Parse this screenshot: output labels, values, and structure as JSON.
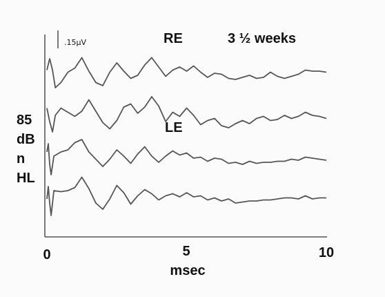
{
  "chart_data": {
    "type": "line",
    "title": "",
    "xlabel": "msec",
    "ylabel": "",
    "xlim": [
      0,
      10
    ],
    "x_ticks": [
      "0",
      "5",
      "10"
    ],
    "scale_bar_label": ".15µV",
    "annotations": {
      "right_ear": "RE",
      "left_ear": "LE",
      "age": "3 ½ weeks",
      "level": [
        "85",
        "dB",
        "n",
        "HL"
      ]
    },
    "series": [
      {
        "x": [
          0.0,
          0.1,
          0.2,
          0.3,
          0.5,
          0.75,
          1.0,
          1.25,
          1.5,
          1.75,
          2.0,
          2.25,
          2.5,
          2.75,
          3.0,
          3.25,
          3.5,
          3.75,
          4.0,
          4.25,
          4.5,
          4.75,
          5.0,
          5.25,
          5.5,
          5.75,
          6.0,
          6.25,
          6.5,
          6.75,
          7.0,
          7.25,
          7.5,
          7.75,
          8.0,
          8.25,
          8.5,
          8.75,
          9.0,
          9.25,
          9.5,
          9.75,
          10.0
        ],
        "y": [
          0.35,
          0.9,
          0.35,
          -0.5,
          -0.25,
          0.25,
          0.45,
          0.95,
          0.3,
          -0.25,
          -0.4,
          0.25,
          0.7,
          0.3,
          -0.05,
          0.1,
          0.6,
          0.95,
          0.5,
          0.05,
          0.35,
          0.5,
          0.3,
          0.55,
          0.25,
          0.0,
          0.2,
          0.15,
          -0.05,
          -0.1,
          0.0,
          0.1,
          -0.05,
          0.0,
          0.25,
          0.05,
          -0.05,
          0.05,
          0.15,
          0.35,
          0.3,
          0.3,
          0.25
        ]
      },
      {
        "x": [
          0.0,
          0.1,
          0.2,
          0.3,
          0.5,
          0.75,
          1.0,
          1.25,
          1.5,
          1.75,
          2.0,
          2.25,
          2.5,
          2.75,
          3.0,
          3.25,
          3.5,
          3.75,
          4.0,
          4.25,
          4.5,
          4.75,
          5.0,
          5.25,
          5.5,
          5.75,
          6.0,
          6.25,
          6.5,
          6.75,
          7.0,
          7.25,
          7.5,
          7.75,
          8.0,
          8.25,
          8.5,
          8.75,
          9.0,
          9.25,
          9.5,
          9.75,
          10.0
        ],
        "y": [
          0.45,
          -0.2,
          -0.7,
          0.1,
          0.45,
          0.25,
          0.05,
          0.3,
          0.85,
          0.3,
          -0.25,
          -0.55,
          -0.15,
          0.5,
          0.65,
          0.2,
          0.5,
          1.0,
          0.55,
          -0.2,
          0.25,
          0.05,
          0.45,
          0.1,
          -0.35,
          -0.15,
          -0.05,
          -0.4,
          -0.5,
          -0.3,
          -0.15,
          -0.3,
          -0.05,
          0.05,
          -0.15,
          -0.1,
          0.1,
          -0.05,
          0.05,
          0.25,
          0.1,
          0.05,
          -0.05
        ]
      },
      {
        "x": [
          0.0,
          0.05,
          0.1,
          0.15,
          0.25,
          0.5,
          0.75,
          1.0,
          1.25,
          1.5,
          1.75,
          2.0,
          2.25,
          2.5,
          2.75,
          3.0,
          3.25,
          3.5,
          3.75,
          4.0,
          4.25,
          4.5,
          4.75,
          5.0,
          5.25,
          5.5,
          5.75,
          6.0,
          6.25,
          6.5,
          6.75,
          7.0,
          7.25,
          7.5,
          7.75,
          8.0,
          8.25,
          8.5,
          8.75,
          9.0,
          9.25,
          9.5,
          9.75,
          10.0
        ],
        "y": [
          0.4,
          0.8,
          -0.2,
          -0.7,
          0.2,
          0.4,
          0.5,
          0.85,
          1.0,
          0.4,
          0.05,
          -0.3,
          0.05,
          0.5,
          0.2,
          -0.15,
          0.3,
          0.65,
          0.2,
          -0.1,
          0.2,
          0.45,
          0.25,
          0.35,
          0.1,
          0.15,
          -0.05,
          0.1,
          0.05,
          -0.15,
          -0.1,
          -0.2,
          -0.05,
          -0.15,
          -0.1,
          -0.1,
          -0.05,
          -0.05,
          0.05,
          0.0,
          0.15,
          0.1,
          0.05,
          0.0
        ]
      },
      {
        "x": [
          0.0,
          0.05,
          0.1,
          0.15,
          0.25,
          0.5,
          0.75,
          1.0,
          1.25,
          1.5,
          1.75,
          2.0,
          2.25,
          2.5,
          2.75,
          3.0,
          3.25,
          3.5,
          3.75,
          4.0,
          4.25,
          4.5,
          4.75,
          5.0,
          5.25,
          5.5,
          5.75,
          6.0,
          6.25,
          6.5,
          6.75,
          7.0,
          7.25,
          7.5,
          7.75,
          8.0,
          8.25,
          8.5,
          8.75,
          9.0,
          9.25,
          9.5,
          9.75,
          10.0
        ],
        "y": [
          -0.2,
          0.4,
          -0.4,
          -1.0,
          0.2,
          0.15,
          0.2,
          0.35,
          0.85,
          0.3,
          -0.4,
          -0.7,
          -0.2,
          0.45,
          0.1,
          -0.45,
          -0.05,
          0.25,
          0.05,
          -0.25,
          -0.05,
          0.05,
          -0.1,
          0.1,
          -0.1,
          -0.05,
          -0.25,
          -0.15,
          -0.3,
          -0.2,
          -0.4,
          -0.35,
          -0.3,
          -0.3,
          -0.25,
          -0.25,
          -0.2,
          -0.15,
          -0.15,
          -0.2,
          -0.05,
          -0.2,
          -0.15,
          -0.15
        ]
      }
    ]
  }
}
